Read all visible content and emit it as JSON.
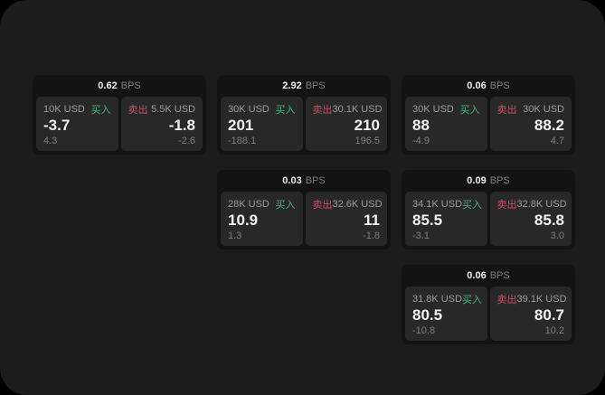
{
  "labels": {
    "bps_suffix": "BPS",
    "buy": "买入",
    "sell": "卖出"
  },
  "colors": {
    "page_bg": "#000000",
    "surface_bg": "#1c1c1c",
    "card_bg": "#131313",
    "panel_bg": "#282828",
    "value_text": "#f2f2f2",
    "label_text": "#9e9e9e",
    "muted_text": "#7f7f7f",
    "buy_green": "#4baf7d",
    "sell_red": "#c65064"
  },
  "cards": [
    {
      "bps": "0.62",
      "grid": {
        "col": 1,
        "row": 1
      },
      "buy": {
        "size": "10K USD",
        "price": "-3.7",
        "delta": "4.3"
      },
      "sell": {
        "size": "5.5K USD",
        "price": "-1.8",
        "delta": "-2.6"
      }
    },
    {
      "bps": "2.92",
      "grid": {
        "col": 2,
        "row": 1
      },
      "buy": {
        "size": "30K USD",
        "price": "201",
        "delta": "-188.1"
      },
      "sell": {
        "size": "30.1K USD",
        "price": "210",
        "delta": "196.5"
      }
    },
    {
      "bps": "0.06",
      "grid": {
        "col": 3,
        "row": 1
      },
      "buy": {
        "size": "30K USD",
        "price": "88",
        "delta": "-4.9"
      },
      "sell": {
        "size": "30K USD",
        "price": "88.2",
        "delta": "4.7"
      }
    },
    {
      "bps": "0.03",
      "grid": {
        "col": 2,
        "row": 2
      },
      "buy": {
        "size": "28K USD",
        "price": "10.9",
        "delta": "1.3"
      },
      "sell": {
        "size": "32.6K USD",
        "price": "11",
        "delta": "-1.8"
      }
    },
    {
      "bps": "0.09",
      "grid": {
        "col": 3,
        "row": 2
      },
      "buy": {
        "size": "34.1K USD",
        "price": "85.5",
        "delta": "-3.1"
      },
      "sell": {
        "size": "32.8K USD",
        "price": "85.8",
        "delta": "3.0"
      }
    },
    {
      "bps": "0.06",
      "grid": {
        "col": 3,
        "row": 3
      },
      "buy": {
        "size": "31.8K USD",
        "price": "80.5",
        "delta": "-10.8"
      },
      "sell": {
        "size": "39.1K USD",
        "price": "80.7",
        "delta": "10.2"
      }
    }
  ]
}
